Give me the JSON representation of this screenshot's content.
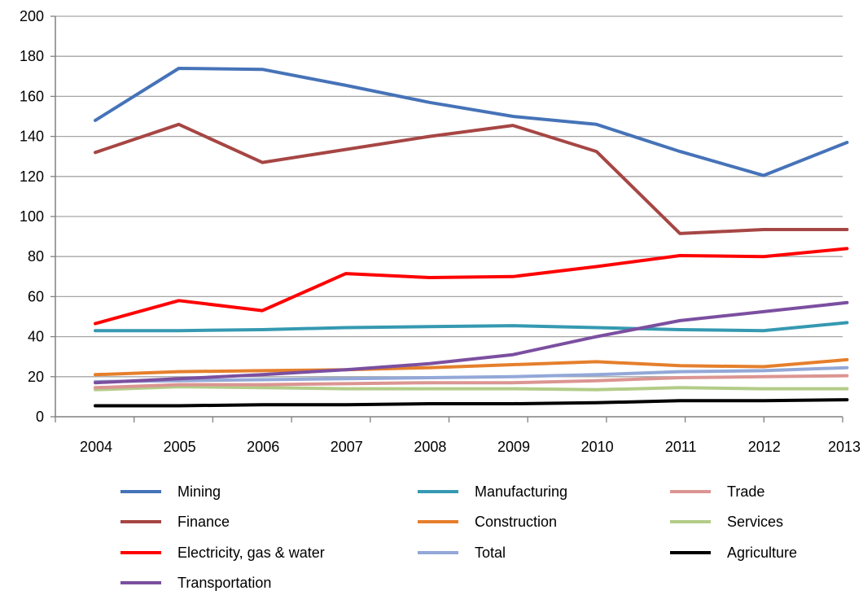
{
  "chart_data": {
    "type": "line",
    "title": "",
    "xlabel": "",
    "ylabel": "",
    "ylim": [
      0,
      200
    ],
    "yticks": [
      0,
      20,
      40,
      60,
      80,
      100,
      120,
      140,
      160,
      180,
      200
    ],
    "categories": [
      "2004",
      "2005",
      "2006",
      "2007",
      "2008",
      "2009",
      "2010",
      "2011",
      "2012",
      "2013"
    ],
    "grid": "horizontal",
    "legend_position": "bottom",
    "series": [
      {
        "name": "Mining",
        "color": "#4673b8",
        "values": [
          148,
          174,
          173.5,
          165.5,
          157,
          150,
          146,
          132.5,
          120.5,
          137
        ]
      },
      {
        "name": "Finance",
        "color": "#a64644",
        "values": [
          132,
          146,
          127,
          133.5,
          140,
          145.5,
          132.5,
          91.5,
          93.5,
          93.5
        ]
      },
      {
        "name": "Electricity, gas & water",
        "color": "#ff0000",
        "values": [
          46.5,
          58,
          53,
          71.5,
          69.5,
          70,
          75,
          80.5,
          80,
          84
        ]
      },
      {
        "name": "Transportation",
        "color": "#7b4fa0",
        "values": [
          17,
          19,
          21,
          23.5,
          26.5,
          31,
          40,
          48,
          52.5,
          57
        ]
      },
      {
        "name": "Manufacturing",
        "color": "#3599b1",
        "values": [
          43,
          43,
          43.5,
          44.5,
          45,
          45.5,
          44.5,
          43.5,
          43,
          47
        ]
      },
      {
        "name": "Construction",
        "color": "#e57f2c",
        "values": [
          21,
          22.5,
          23,
          23.5,
          24.5,
          26,
          27.5,
          25.5,
          25,
          28.5
        ]
      },
      {
        "name": "Total",
        "color": "#93a8d8",
        "values": [
          17.5,
          18,
          18.5,
          19,
          19.5,
          20,
          21,
          22.5,
          23,
          24.5
        ]
      },
      {
        "name": "Trade",
        "color": "#db9592",
        "values": [
          14.5,
          16,
          16,
          16.5,
          17,
          17,
          18,
          19.5,
          20,
          20.5
        ]
      },
      {
        "name": "Services",
        "color": "#b3cc88",
        "values": [
          13.5,
          15,
          14.5,
          14,
          14,
          14,
          13.5,
          14.5,
          14,
          14
        ]
      },
      {
        "name": "Agriculture",
        "color": "#000000",
        "values": [
          5.5,
          5.5,
          6,
          6,
          6.5,
          6.5,
          7,
          8,
          8,
          8.5
        ]
      }
    ],
    "legend": [
      [
        "Mining",
        "Finance",
        "Electricity, gas & water",
        "Transportation"
      ],
      [
        "Manufacturing",
        "Construction",
        "Total"
      ],
      [
        "Trade",
        "Services",
        "Agriculture"
      ]
    ]
  }
}
